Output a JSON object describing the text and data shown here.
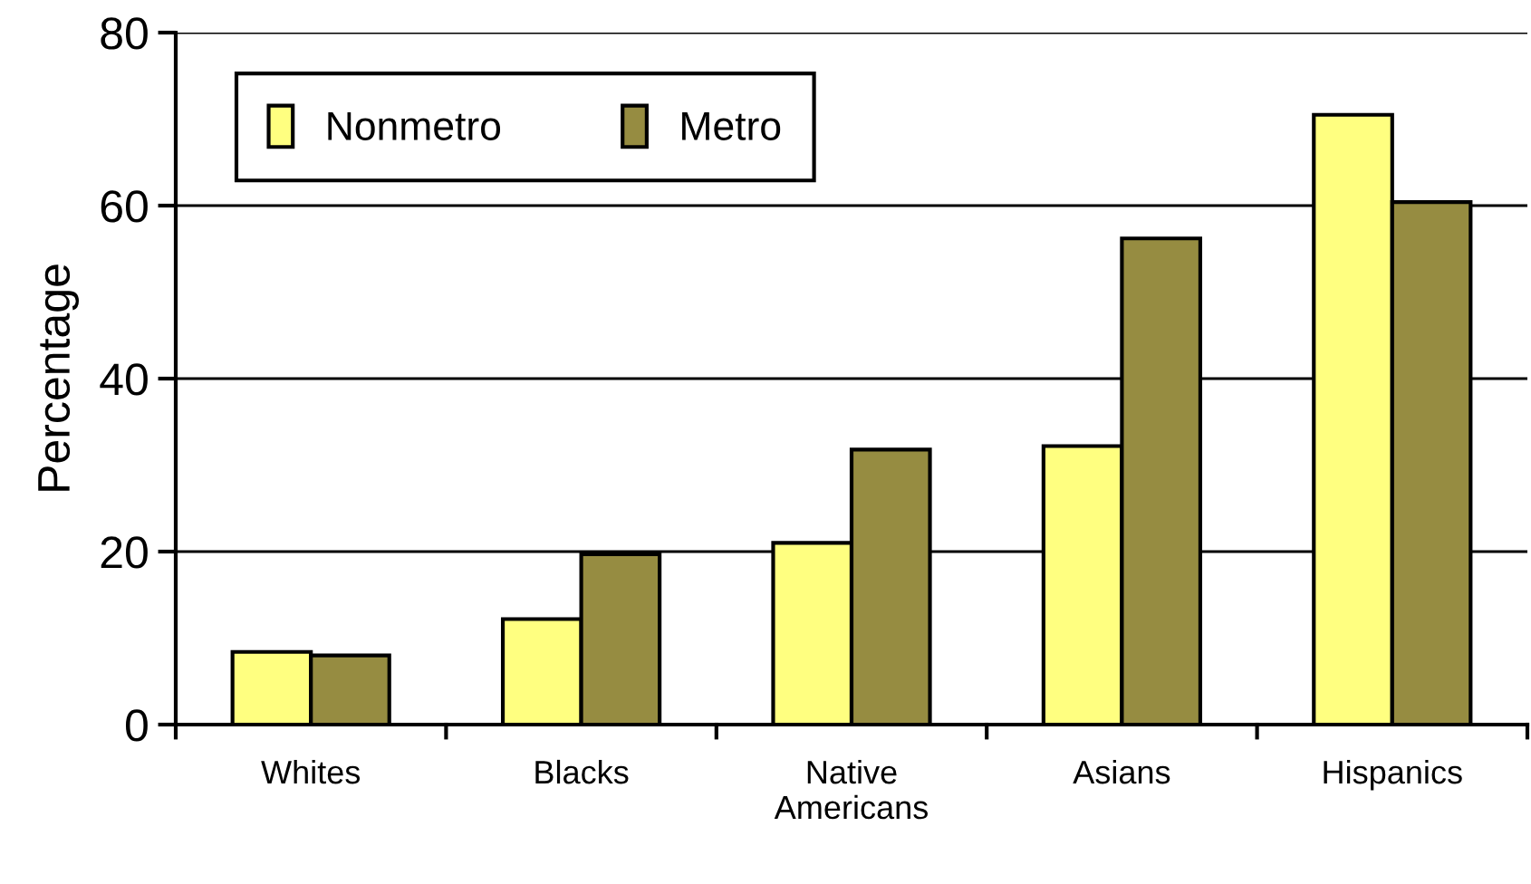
{
  "chart_data": {
    "type": "bar",
    "ylabel": "Percentage",
    "categories": [
      "Whites",
      "Blacks",
      "Native\nAmericans",
      "Asians",
      "Hispanics"
    ],
    "series": [
      {
        "name": "Nonmetro",
        "color": "#ffff80",
        "values": [
          8.4,
          12.2,
          21.0,
          32.2,
          70.5
        ]
      },
      {
        "name": "Metro",
        "color": "#968c41",
        "values": [
          8.0,
          19.7,
          31.8,
          56.2,
          60.4
        ]
      }
    ],
    "ylim": [
      0,
      80
    ],
    "yticks": [
      0,
      20,
      40,
      60,
      80
    ],
    "grid": "y",
    "legend": "top left"
  }
}
